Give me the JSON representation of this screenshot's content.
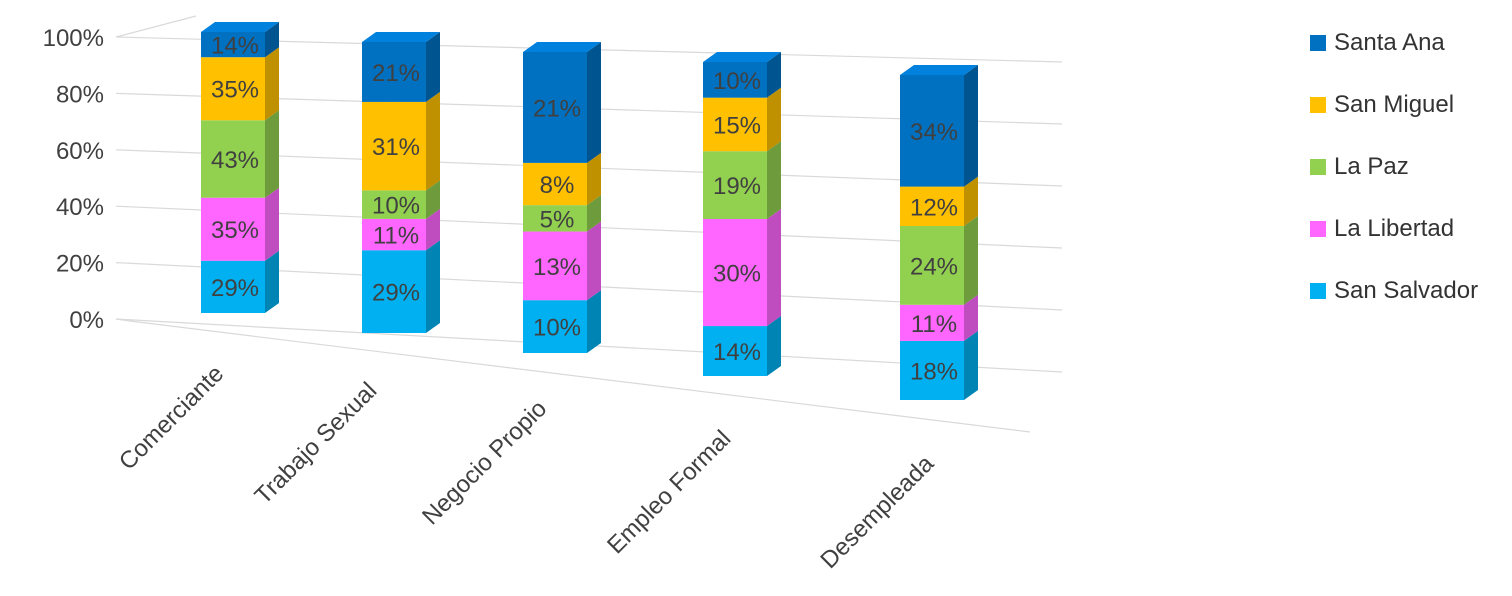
{
  "chart_data": {
    "type": "bar",
    "stacked": true,
    "normalized": true,
    "three_d": true,
    "categories": [
      "Comerciante",
      "Trabajo Sexual",
      "Negocio Propio",
      "Empleo Formal",
      "Desempleada"
    ],
    "series": [
      {
        "name": "San Salvador",
        "color": "#00B0F0",
        "values": [
          29,
          29,
          10,
          14,
          18
        ],
        "labels": [
          "29%",
          "29%",
          "10%",
          "14%",
          "18%"
        ]
      },
      {
        "name": "La Libertad",
        "color": "#FF66FF",
        "values": [
          35,
          11,
          13,
          30,
          11
        ],
        "labels": [
          "35%",
          "11%",
          "13%",
          "30%",
          "11%"
        ]
      },
      {
        "name": "La Paz",
        "color": "#92D050",
        "values": [
          43,
          10,
          5,
          19,
          24
        ],
        "labels": [
          "43%",
          "10%",
          "5%",
          "19%",
          "24%"
        ]
      },
      {
        "name": "San Miguel",
        "color": "#FFC000",
        "values": [
          35,
          31,
          8,
          15,
          12
        ],
        "labels": [
          "35%",
          "31%",
          "8%",
          "15%",
          "12%"
        ]
      },
      {
        "name": "Santa Ana",
        "color": "#0070C0",
        "values": [
          14,
          21,
          21,
          10,
          34
        ],
        "labels": [
          "14%",
          "21%",
          "21%",
          "10%",
          "34%"
        ]
      }
    ],
    "yticks": [
      "0%",
      "20%",
      "40%",
      "60%",
      "80%",
      "100%"
    ],
    "ylim": [
      0,
      100
    ],
    "title": "",
    "xlabel": "",
    "ylabel": "",
    "grid": true,
    "legend_position": "right"
  },
  "legend": {
    "items": [
      {
        "label": "Santa Ana",
        "color": "#0070C0"
      },
      {
        "label": "San Miguel",
        "color": "#FFC000"
      },
      {
        "label": "La Paz",
        "color": "#92D050"
      },
      {
        "label": "La Libertad",
        "color": "#FF66FF"
      },
      {
        "label": "San Salvador",
        "color": "#00B0F0"
      }
    ]
  }
}
